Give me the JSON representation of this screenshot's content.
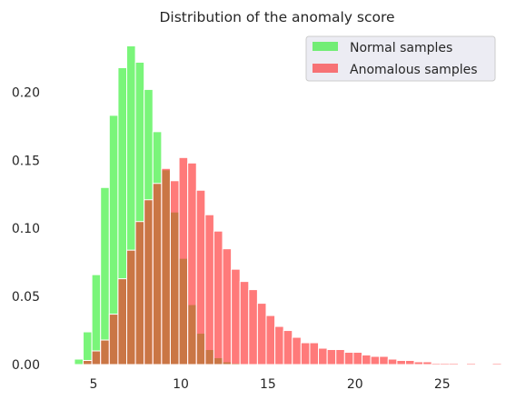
{
  "chart_data": {
    "type": "bar",
    "title": "Distribution of the anomaly score",
    "xlabel": "",
    "ylabel": "",
    "xlim": [
      2.6,
      28.4
    ],
    "ylim": [
      0,
      0.245
    ],
    "xticks": [
      5,
      10,
      15,
      20,
      25
    ],
    "yticks": [
      0.0,
      0.05,
      0.1,
      0.15,
      0.2
    ],
    "ytick_labels": [
      "0.00",
      "0.05",
      "0.10",
      "0.15",
      "0.20"
    ],
    "grid": false,
    "legend_position": "top-right",
    "bin_start": 3.9,
    "bin_width": 0.5,
    "colors": {
      "normal": "#22ee22",
      "anomalous": "#ff2222",
      "edge": "#ffffff",
      "legend_bg": "#eaeaf2",
      "legend_border": "#cccccc"
    },
    "series": [
      {
        "name": "Normal samples",
        "color": "#22ee22",
        "values": [
          0.004,
          0.024,
          0.066,
          0.13,
          0.183,
          0.218,
          0.234,
          0.222,
          0.202,
          0.171,
          0.143,
          0.112,
          0.078,
          0.044,
          0.023,
          0.011,
          0.005,
          0.002,
          0.001,
          0.0005,
          0.0003,
          0.0002
        ]
      },
      {
        "name": "Anomalous samples",
        "color": "#ff2222",
        "values": [
          0.0,
          0.003,
          0.01,
          0.018,
          0.037,
          0.063,
          0.084,
          0.105,
          0.121,
          0.133,
          0.144,
          0.135,
          0.152,
          0.148,
          0.128,
          0.11,
          0.098,
          0.085,
          0.07,
          0.061,
          0.055,
          0.045,
          0.036,
          0.028,
          0.025,
          0.02,
          0.016,
          0.016,
          0.012,
          0.011,
          0.011,
          0.009,
          0.009,
          0.007,
          0.006,
          0.006,
          0.004,
          0.003,
          0.003,
          0.002,
          0.002,
          0.001,
          0.001,
          0.001,
          0.0,
          0.001,
          0.0,
          0.0,
          0.001
        ]
      }
    ]
  }
}
